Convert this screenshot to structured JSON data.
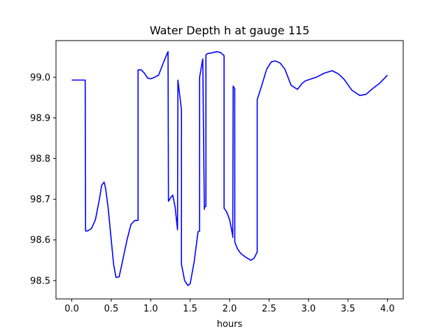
{
  "chart_data": {
    "type": "line",
    "title": "Water Depth h at gauge 115",
    "xlabel": "hours",
    "ylabel": "",
    "xlim": [
      -0.2,
      4.2
    ],
    "ylim": [
      98.455,
      99.09
    ],
    "xticks": [
      0.0,
      0.5,
      1.0,
      1.5,
      2.0,
      2.5,
      3.0,
      3.5,
      4.0
    ],
    "xtick_labels": [
      "0.0",
      "0.5",
      "1.0",
      "1.5",
      "2.0",
      "2.5",
      "3.0",
      "3.5",
      "4.0"
    ],
    "yticks": [
      98.5,
      98.6,
      98.7,
      98.8,
      98.9,
      99.0
    ],
    "ytick_labels": [
      "98.5",
      "98.6",
      "98.7",
      "98.8",
      "98.9",
      "99.0"
    ],
    "grid": false,
    "series": [
      {
        "color": "#0000ff",
        "x": [
          0.0,
          0.1,
          0.17,
          0.175,
          0.2,
          0.25,
          0.3,
          0.35,
          0.38,
          0.41,
          0.43,
          0.46,
          0.5,
          0.53,
          0.56,
          0.6,
          0.64,
          0.7,
          0.75,
          0.8,
          0.84,
          0.84,
          0.88,
          0.92,
          0.96,
          1.0,
          1.05,
          1.1,
          1.14,
          1.18,
          1.22,
          1.225,
          1.25,
          1.28,
          1.31,
          1.34,
          1.345,
          1.39,
          1.39,
          1.43,
          1.47,
          1.5,
          1.55,
          1.6,
          1.62,
          1.62,
          1.66,
          1.68,
          1.68,
          1.7,
          1.7,
          1.72,
          1.78,
          1.84,
          1.89,
          1.93,
          1.93,
          1.96,
          2.0,
          2.04,
          2.04,
          2.045,
          2.065,
          2.066,
          2.075,
          2.1,
          2.14,
          2.2,
          2.27,
          2.31,
          2.35,
          2.35,
          2.4,
          2.47,
          2.53,
          2.58,
          2.64,
          2.7,
          2.78,
          2.86,
          2.92,
          2.96,
          3.02,
          3.1,
          3.2,
          3.3,
          3.38,
          3.45,
          3.55,
          3.65,
          3.73,
          3.8,
          3.9,
          4.0
        ],
        "y": [
          98.993,
          98.993,
          98.993,
          98.622,
          98.622,
          98.628,
          98.65,
          98.7,
          98.735,
          98.742,
          98.725,
          98.68,
          98.6,
          98.54,
          98.508,
          98.509,
          98.545,
          98.6,
          98.638,
          98.648,
          98.648,
          99.018,
          99.018,
          99.01,
          98.998,
          98.996,
          99.0,
          99.005,
          99.025,
          99.045,
          99.063,
          98.695,
          98.703,
          98.71,
          98.68,
          98.625,
          98.993,
          98.92,
          98.54,
          98.5,
          98.488,
          98.492,
          98.545,
          98.62,
          98.622,
          99.0,
          99.045,
          98.675,
          98.68,
          98.683,
          99.055,
          99.058,
          99.06,
          99.063,
          99.06,
          99.053,
          98.678,
          98.67,
          98.65,
          98.61,
          98.606,
          98.978,
          98.972,
          98.595,
          98.59,
          98.578,
          98.567,
          98.558,
          98.55,
          98.555,
          98.57,
          98.945,
          98.975,
          99.02,
          99.038,
          99.04,
          99.035,
          99.02,
          98.98,
          98.97,
          98.985,
          98.991,
          98.995,
          99.0,
          99.01,
          99.016,
          99.008,
          98.995,
          98.968,
          98.955,
          98.958,
          98.97,
          98.985,
          99.005
        ]
      }
    ]
  }
}
